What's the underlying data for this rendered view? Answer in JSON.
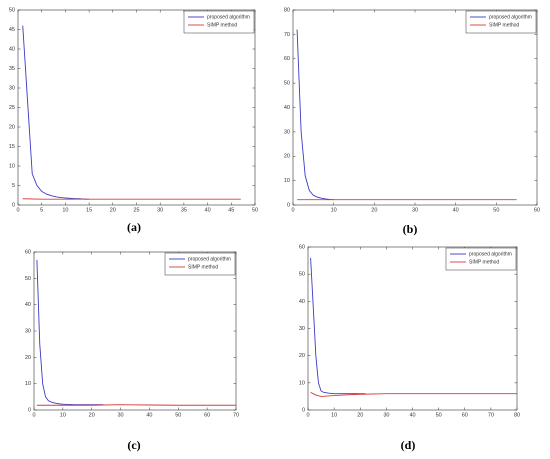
{
  "chart_data": [
    {
      "type": "line",
      "label": "(a)",
      "legend": "upper right",
      "grid": false,
      "xlim": [
        0,
        50
      ],
      "xticks": [
        0,
        5,
        10,
        15,
        20,
        25,
        30,
        35,
        40,
        45,
        50
      ],
      "ylim": [
        0,
        50
      ],
      "yticks": [
        0,
        5,
        10,
        15,
        20,
        25,
        30,
        35,
        40,
        45,
        50
      ],
      "series": [
        {
          "name": "proposed algorithm",
          "color": "#3a3ac8",
          "x": [
            1,
            2,
            3,
            4,
            5,
            6,
            7,
            8,
            9,
            10,
            11,
            12,
            13,
            14,
            15
          ],
          "values": [
            46,
            27,
            8,
            5,
            3.5,
            2.8,
            2.4,
            2.1,
            1.9,
            1.8,
            1.7,
            1.6,
            1.6,
            1.5,
            1.5
          ]
        },
        {
          "name": "SIMP method",
          "color": "#d83a3a",
          "x": [
            1,
            5,
            10,
            20,
            30,
            40,
            47
          ],
          "values": [
            1.6,
            1.5,
            1.5,
            1.5,
            1.5,
            1.5,
            1.5
          ]
        }
      ]
    },
    {
      "type": "line",
      "label": "(b)",
      "legend": "upper right",
      "grid": false,
      "xlim": [
        0,
        60
      ],
      "xticks": [
        0,
        10,
        20,
        30,
        40,
        50,
        60
      ],
      "ylim": [
        0,
        80
      ],
      "yticks": [
        0,
        10,
        20,
        30,
        40,
        50,
        60,
        70,
        80
      ],
      "series": [
        {
          "name": "proposed algorithm",
          "color": "#3a3ac8",
          "x": [
            1,
            2,
            3,
            4,
            5,
            6,
            7,
            8,
            9,
            10
          ],
          "values": [
            72,
            30,
            12,
            6,
            4,
            3.2,
            2.8,
            2.5,
            2.3,
            2.2
          ]
        },
        {
          "name": "SIMP method",
          "color": "#d83a3a",
          "x": [
            1,
            10,
            20,
            30,
            40,
            50,
            55
          ],
          "values": [
            2.2,
            2.2,
            2.2,
            2.2,
            2.2,
            2.2,
            2.2
          ]
        }
      ]
    },
    {
      "type": "line",
      "label": "(c)",
      "legend": "upper right",
      "grid": false,
      "xlim": [
        0,
        70
      ],
      "xticks": [
        0,
        10,
        20,
        30,
        40,
        50,
        60,
        70
      ],
      "ylim": [
        0,
        60
      ],
      "yticks": [
        0,
        10,
        20,
        30,
        40,
        50,
        60
      ],
      "series": [
        {
          "name": "proposed algorithm",
          "color": "#3a3ac8",
          "x": [
            1,
            2,
            3,
            4,
            5,
            6,
            7,
            8,
            9,
            10,
            12,
            14,
            16,
            18,
            20,
            22,
            24
          ],
          "values": [
            57,
            25,
            10,
            5,
            3.5,
            3,
            2.7,
            2.5,
            2.3,
            2.2,
            2.1,
            2,
            2,
            2,
            2,
            2,
            2
          ]
        },
        {
          "name": "SIMP method",
          "color": "#d83a3a",
          "x": [
            1,
            10,
            20,
            30,
            40,
            50,
            60,
            70
          ],
          "values": [
            1.8,
            1.8,
            1.8,
            2,
            1.9,
            1.8,
            1.8,
            1.8
          ]
        }
      ]
    },
    {
      "type": "line",
      "label": "(d)",
      "legend": "upper right",
      "grid": false,
      "xlim": [
        0,
        80
      ],
      "xticks": [
        0,
        10,
        20,
        30,
        40,
        50,
        60,
        70,
        80
      ],
      "ylim": [
        0,
        60
      ],
      "yticks": [
        0,
        10,
        20,
        30,
        40,
        50,
        60
      ],
      "series": [
        {
          "name": "proposed algorithm",
          "color": "#3a3ac8",
          "x": [
            1,
            2,
            3,
            4,
            5,
            6,
            8,
            10,
            14,
            18,
            22
          ],
          "values": [
            56,
            38,
            20,
            10,
            7,
            6.5,
            6.2,
            6,
            6,
            6,
            6
          ]
        },
        {
          "name": "SIMP method",
          "color": "#d83a3a",
          "x": [
            1,
            2,
            3,
            5,
            10,
            15,
            20,
            30,
            50,
            80
          ],
          "values": [
            6.5,
            6,
            5.5,
            5,
            5.3,
            5.6,
            5.8,
            6,
            6,
            6
          ]
        }
      ]
    }
  ]
}
